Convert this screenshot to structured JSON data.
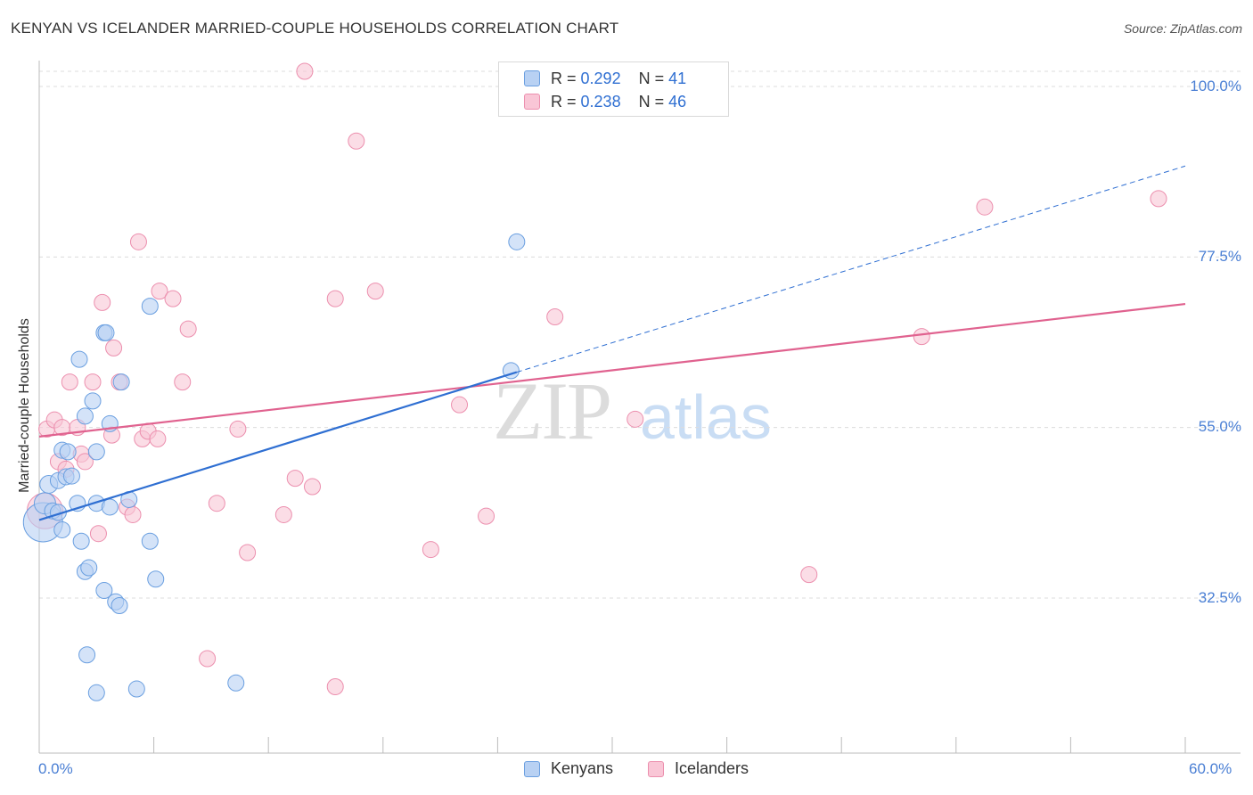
{
  "header": {
    "title": "KENYAN VS ICELANDER MARRIED-COUPLE HOUSEHOLDS CORRELATION CHART",
    "source": "Source: ZipAtlas.com"
  },
  "watermark": {
    "zip": "ZIP",
    "atlas": "atlas"
  },
  "legend": {
    "kenyans": {
      "r_label": "R =",
      "r_value": "0.292",
      "n_label": "N =",
      "n_value": "41"
    },
    "icelanders": {
      "r_label": "R =",
      "r_value": "0.238",
      "n_label": "N =",
      "n_value": "46"
    }
  },
  "bottom_legend": {
    "kenyans": "Kenyans",
    "icelanders": "Icelanders"
  },
  "colors": {
    "kenyans_fill": "#b8d1f3",
    "kenyans_stroke": "#6a9fe0",
    "kenyans_line": "#2f6fd2",
    "icelanders_fill": "#f9c6d6",
    "icelanders_stroke": "#ec8fae",
    "icelanders_line": "#e0628f",
    "grid": "#dcdcdc",
    "axis": "#bbbbbb",
    "tick_label": "#4a7fd4"
  },
  "chart_data": {
    "type": "scatter",
    "title": "KENYAN VS ICELANDER MARRIED-COUPLE HOUSEHOLDS CORRELATION CHART",
    "xlabel": "",
    "ylabel": "Married-couple Households",
    "xlim": [
      0,
      60
    ],
    "ylim": [
      10.5,
      105
    ],
    "x_tick_labels": [
      "0.0%",
      "60.0%"
    ],
    "y_ticks": [
      32.5,
      55.0,
      77.5,
      100.0
    ],
    "y_tick_labels": [
      "32.5%",
      "55.0%",
      "77.5%",
      "100.0%"
    ],
    "grid": true,
    "legend_position": "top-center",
    "series": [
      {
        "name": "Kenyans",
        "r": 0.292,
        "n": 41,
        "trend": {
          "x0": 0,
          "y0": 42.8,
          "x1": 25,
          "y1": 62.3,
          "dashed_to_x": 60,
          "dashed_to_y": 89.5
        },
        "points": [
          [
            0.2,
            42.5,
            22
          ],
          [
            0.3,
            45,
            12
          ],
          [
            0.5,
            47.5,
            10
          ],
          [
            0.7,
            44,
            9
          ],
          [
            1.0,
            43.8,
            9
          ],
          [
            1.0,
            48,
            9
          ],
          [
            1.2,
            52,
            9
          ],
          [
            1.2,
            41.5,
            9
          ],
          [
            1.4,
            48.5,
            9
          ],
          [
            1.5,
            51.8,
            9
          ],
          [
            1.7,
            48.6,
            9
          ],
          [
            2.0,
            45,
            9
          ],
          [
            2.1,
            64,
            9
          ],
          [
            2.2,
            40,
            9
          ],
          [
            2.4,
            36,
            9
          ],
          [
            2.4,
            56.5,
            9
          ],
          [
            2.5,
            25,
            9
          ],
          [
            2.6,
            36.5,
            9
          ],
          [
            2.8,
            58.5,
            9
          ],
          [
            3.0,
            45,
            9
          ],
          [
            3.0,
            51.8,
            9
          ],
          [
            3.0,
            20,
            9
          ],
          [
            3.4,
            33.5,
            9
          ],
          [
            3.4,
            67.5,
            9
          ],
          [
            3.5,
            67.5,
            9
          ],
          [
            3.7,
            55.5,
            9
          ],
          [
            3.7,
            44.5,
            9
          ],
          [
            4.0,
            32,
            9
          ],
          [
            4.2,
            31.5,
            9
          ],
          [
            4.3,
            61,
            9
          ],
          [
            4.7,
            45.5,
            9
          ],
          [
            5.1,
            20.5,
            9
          ],
          [
            5.8,
            40,
            9
          ],
          [
            5.8,
            71,
            9
          ],
          [
            6.1,
            35,
            9
          ],
          [
            10.3,
            21.3,
            9
          ],
          [
            24.7,
            62.5,
            9
          ],
          [
            25.0,
            79.5,
            9
          ]
        ]
      },
      {
        "name": "Icelanders",
        "r": 0.238,
        "n": 46,
        "trend": {
          "x0": 0,
          "y0": 53.8,
          "x1": 60,
          "y1": 71.3
        },
        "points": [
          [
            0.3,
            44,
            20
          ],
          [
            0.4,
            54.8,
            9
          ],
          [
            0.8,
            56,
            9
          ],
          [
            1.0,
            50.5,
            9
          ],
          [
            1.2,
            55,
            9
          ],
          [
            1.4,
            49.5,
            9
          ],
          [
            1.6,
            61,
            9
          ],
          [
            2.0,
            55,
            9
          ],
          [
            2.2,
            51.5,
            9
          ],
          [
            2.4,
            50.5,
            9
          ],
          [
            2.8,
            61,
            9
          ],
          [
            3.1,
            41,
            9
          ],
          [
            3.3,
            71.5,
            9
          ],
          [
            3.8,
            54,
            9
          ],
          [
            3.9,
            65.5,
            9
          ],
          [
            4.2,
            61,
            9
          ],
          [
            4.6,
            44.5,
            9
          ],
          [
            4.9,
            43.5,
            9
          ],
          [
            5.2,
            79.5,
            9
          ],
          [
            5.4,
            53.5,
            9
          ],
          [
            5.7,
            54.5,
            9
          ],
          [
            6.2,
            53.5,
            9
          ],
          [
            6.3,
            73,
            9
          ],
          [
            7.0,
            72,
            9
          ],
          [
            7.5,
            61,
            9
          ],
          [
            7.8,
            68,
            9
          ],
          [
            8.8,
            24.5,
            9
          ],
          [
            9.3,
            45,
            9
          ],
          [
            10.4,
            54.8,
            9
          ],
          [
            10.9,
            38.5,
            9
          ],
          [
            12.8,
            43.5,
            9
          ],
          [
            13.4,
            48.3,
            9
          ],
          [
            13.9,
            102,
            9
          ],
          [
            14.3,
            47.2,
            9
          ],
          [
            15.5,
            20.8,
            9
          ],
          [
            15.5,
            72,
            9
          ],
          [
            16.6,
            92.8,
            9
          ],
          [
            17.6,
            73,
            9
          ],
          [
            20.5,
            38.9,
            9
          ],
          [
            22.0,
            58,
            9
          ],
          [
            23.4,
            43.3,
            9
          ],
          [
            27.0,
            69.6,
            9
          ],
          [
            31.2,
            56.1,
            9
          ],
          [
            40.3,
            35.6,
            9
          ],
          [
            46.2,
            67,
            9
          ],
          [
            49.5,
            84.1,
            9
          ],
          [
            58.6,
            85.2,
            9
          ]
        ]
      }
    ]
  }
}
